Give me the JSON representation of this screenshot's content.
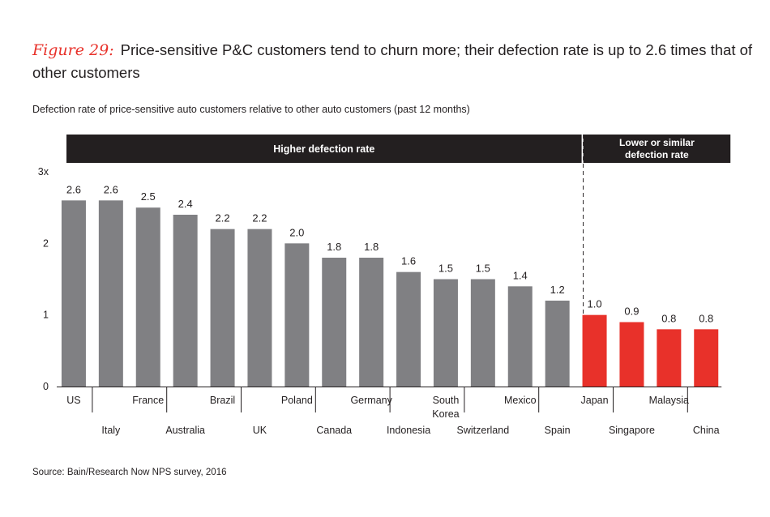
{
  "figure": {
    "label": "Figure 29:",
    "title": "Price-sensitive P&C customers tend to churn more; their defection rate is up to 2.6 times that of other customers",
    "subtitle": "Defection rate of price-sensitive auto customers relative to other auto customers (past 12 months)",
    "source": "Source: Bain/Research Now NPS survey, 2016"
  },
  "colors": {
    "higher": "#808083",
    "lower": "#e8312a",
    "banner": "#231f20"
  },
  "chart_data": {
    "type": "bar",
    "title": "Defection rate of price-sensitive auto customers relative to other auto customers (past 12 months)",
    "categories": [
      "US",
      "Italy",
      "France",
      "Australia",
      "Brazil",
      "UK",
      "Poland",
      "Canada",
      "Germany",
      "Indonesia",
      "South Korea",
      "Switzerland",
      "Mexico",
      "Spain",
      "Japan",
      "Singapore",
      "Malaysia",
      "China"
    ],
    "values": [
      2.6,
      2.6,
      2.5,
      2.4,
      2.2,
      2.2,
      2.0,
      1.8,
      1.8,
      1.6,
      1.5,
      1.5,
      1.4,
      1.2,
      1.0,
      0.9,
      0.8,
      0.8
    ],
    "value_labels": [
      "2.6",
      "2.6",
      "2.5",
      "2.4",
      "2.2",
      "2.2",
      "2.0",
      "1.8",
      "1.8",
      "1.6",
      "1.5",
      "1.5",
      "1.4",
      "1.2",
      "1.0",
      "0.9",
      "0.8",
      "0.8"
    ],
    "groups": [
      {
        "label": "Higher defection rate",
        "count": 14,
        "color": "higher"
      },
      {
        "label": "Lower or similar defection rate",
        "label_lines": [
          "Lower or similar",
          "defection rate"
        ],
        "count": 4,
        "color": "lower"
      }
    ],
    "y_ticks": [
      0,
      1,
      2,
      3
    ],
    "y_tick_labels": [
      "0",
      "1",
      "2",
      "3x"
    ],
    "ylim": [
      0,
      3.1
    ],
    "xlabel": "",
    "ylabel": ""
  }
}
